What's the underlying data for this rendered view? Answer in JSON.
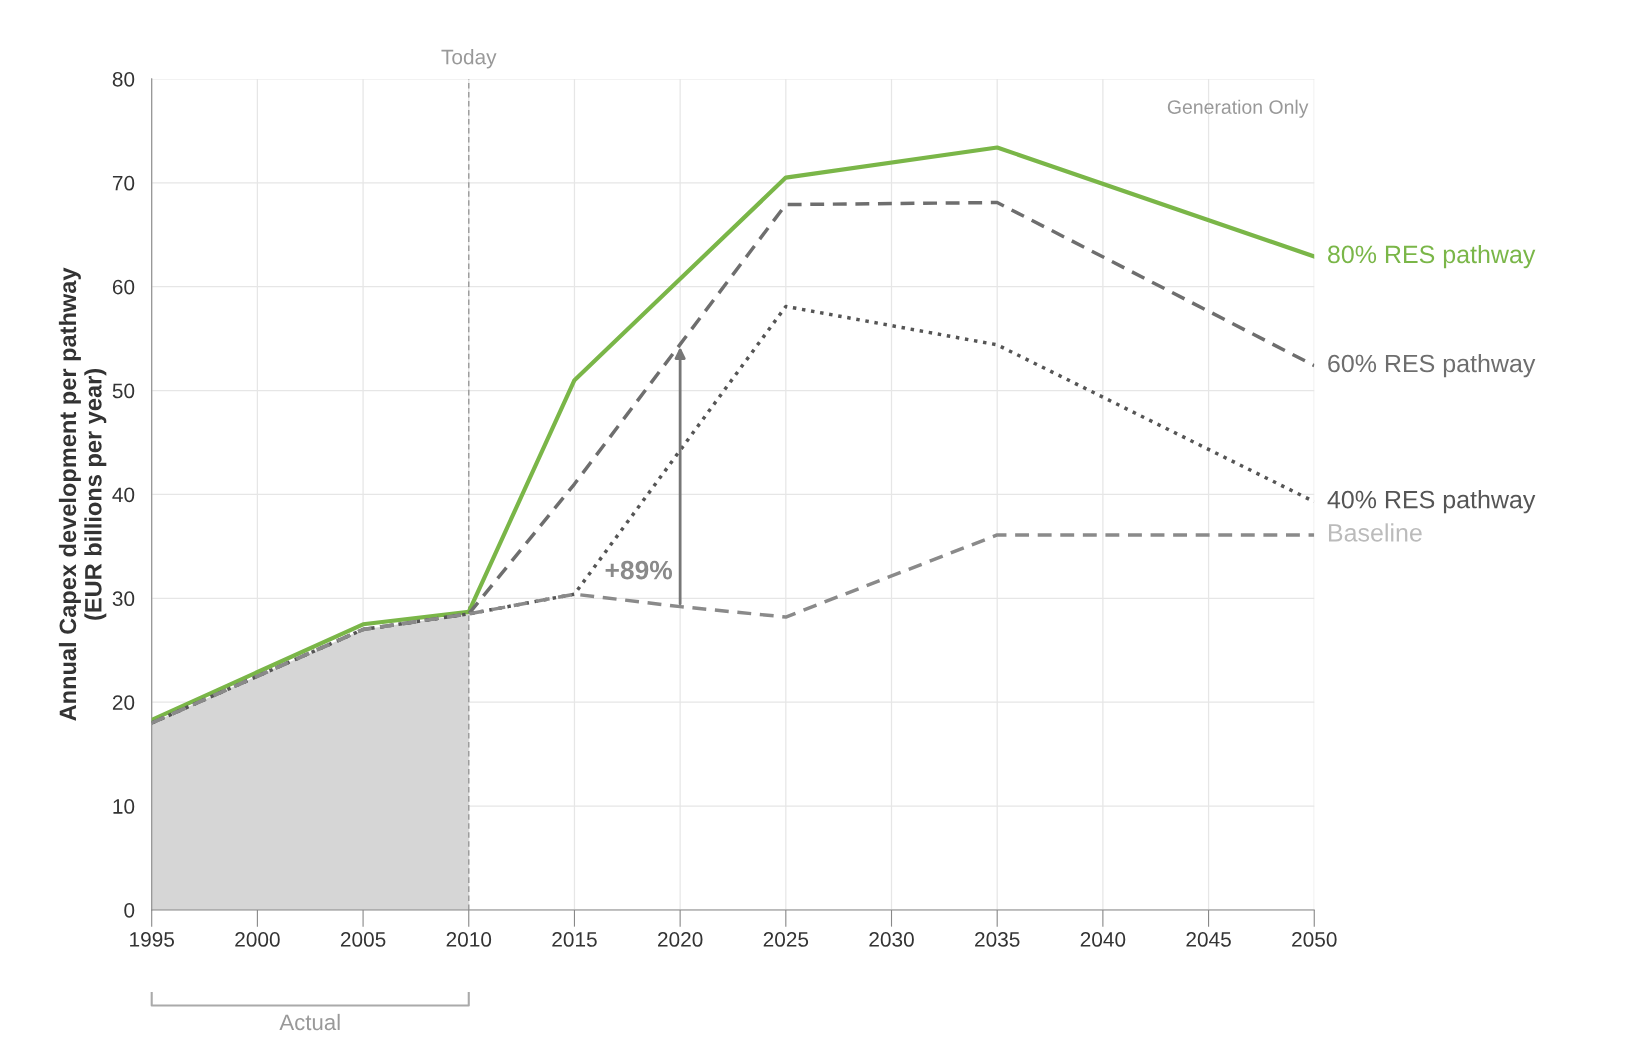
{
  "chart_data": {
    "type": "line",
    "ylabel": "Annual Capex development per pathway\n(EUR billions per year)",
    "x": [
      1995,
      2005,
      2010,
      2015,
      2025,
      2035,
      2050
    ],
    "series": [
      {
        "name": "80% RES pathway",
        "color": "#7ab648",
        "line_style": "solid",
        "values": [
          18.3,
          27.5,
          28.7,
          51,
          70.5,
          73.4,
          62.9
        ]
      },
      {
        "name": "60% RES pathway",
        "color": "#6e6e6e",
        "line_style": "dashed",
        "values": [
          18,
          27,
          28.5,
          41,
          67.9,
          68.1,
          52.4
        ]
      },
      {
        "name": "40% RES pathway",
        "color": "#555555",
        "line_style": "dotted",
        "values": [
          18,
          27,
          28.5,
          30.4,
          58.1,
          54.4,
          39.3
        ]
      },
      {
        "name": "Baseline",
        "color": "#8a8a8a",
        "line_style": "dashed",
        "x": [
          1995,
          2005,
          2010,
          2015,
          2020,
          2025,
          2035,
          2050
        ],
        "values": [
          18,
          27,
          28.5,
          30.4,
          29.2,
          28.2,
          36.1,
          36.1
        ]
      },
      {
        "type": "area",
        "color": "#d6d6d6",
        "x": [
          1995,
          2005,
          2010
        ],
        "values": [
          18,
          27,
          28.5
        ]
      }
    ],
    "xlim": [
      1995,
      2050
    ],
    "xticks": [
      1995,
      2000,
      2005,
      2010,
      2015,
      2020,
      2025,
      2030,
      2035,
      2040,
      2045,
      2050
    ],
    "ylim": [
      0,
      80
    ],
    "yticks": [
      0,
      10,
      20,
      30,
      40,
      50,
      60,
      70,
      80
    ],
    "grid": true,
    "ref_lines": [
      {
        "axis": "x",
        "value": 2010,
        "label": "Today",
        "color": "#999999",
        "line_style": "dashed"
      }
    ],
    "annotations": [
      "Generation Only",
      {
        "text": "+89%",
        "x": 2020,
        "y": 29.2
      },
      "Actual"
    ]
  }
}
